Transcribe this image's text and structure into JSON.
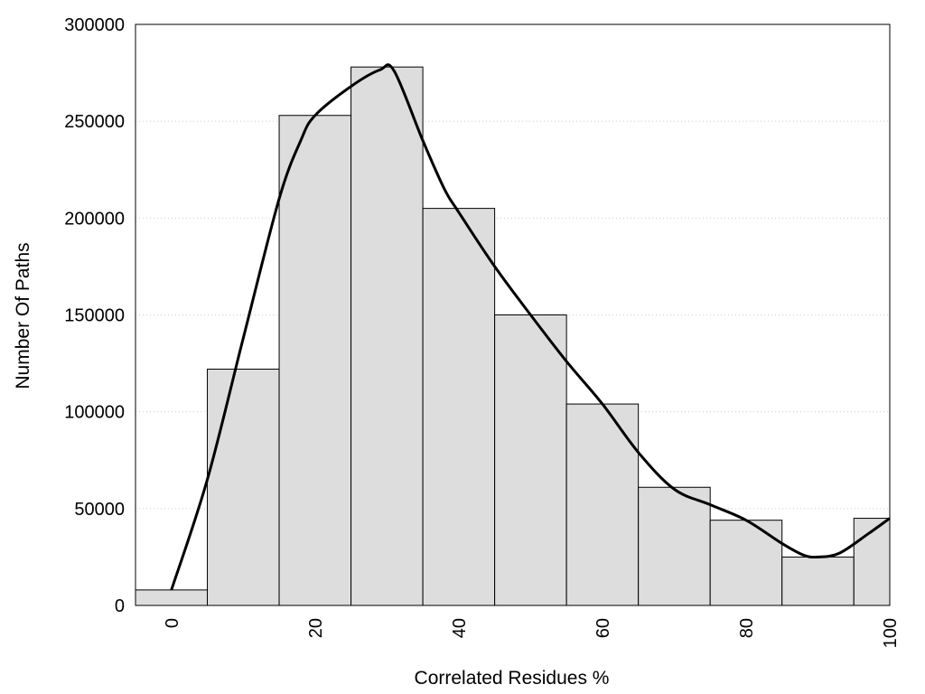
{
  "chart_data": {
    "type": "bar",
    "title": "",
    "xlabel": "Correlated Residues %",
    "ylabel": "Number Of Paths",
    "xlim": [
      -5,
      100
    ],
    "ylim": [
      0,
      300000
    ],
    "grid": "horizontal dotted",
    "colors": {
      "bar_fill": "#dddddd",
      "bar_stroke": "#000000",
      "curve": "#000000",
      "grid": "#cccccc"
    },
    "x_ticks": [
      "0",
      "20",
      "40",
      "60",
      "80",
      "100"
    ],
    "y_ticks": [
      "0",
      "50000",
      "100000",
      "150000",
      "200000",
      "250000",
      "300000"
    ],
    "bins": [
      {
        "center": 0,
        "value": 8000
      },
      {
        "center": 10,
        "value": 122000
      },
      {
        "center": 20,
        "value": 253000
      },
      {
        "center": 30,
        "value": 278000
      },
      {
        "center": 40,
        "value": 205000
      },
      {
        "center": 50,
        "value": 150000
      },
      {
        "center": 60,
        "value": 104000
      },
      {
        "center": 70,
        "value": 61000
      },
      {
        "center": 80,
        "value": 44000
      },
      {
        "center": 90,
        "value": 25000
      },
      {
        "center": 100,
        "value": 45000
      }
    ],
    "bin_width": 10,
    "curve": {
      "type": "line",
      "x": [
        0,
        5,
        10,
        15,
        18,
        20,
        25,
        29,
        31,
        35,
        38,
        40,
        45,
        50,
        55,
        60,
        65,
        70,
        75,
        80,
        85,
        88,
        90,
        93,
        97,
        100
      ],
      "y": [
        8000,
        65000,
        138000,
        210000,
        240000,
        253000,
        268000,
        276500,
        276000,
        240000,
        215000,
        203000,
        175000,
        150000,
        126000,
        104000,
        79000,
        60000,
        52000,
        44000,
        32000,
        26000,
        25000,
        27000,
        37000,
        45000
      ]
    }
  }
}
